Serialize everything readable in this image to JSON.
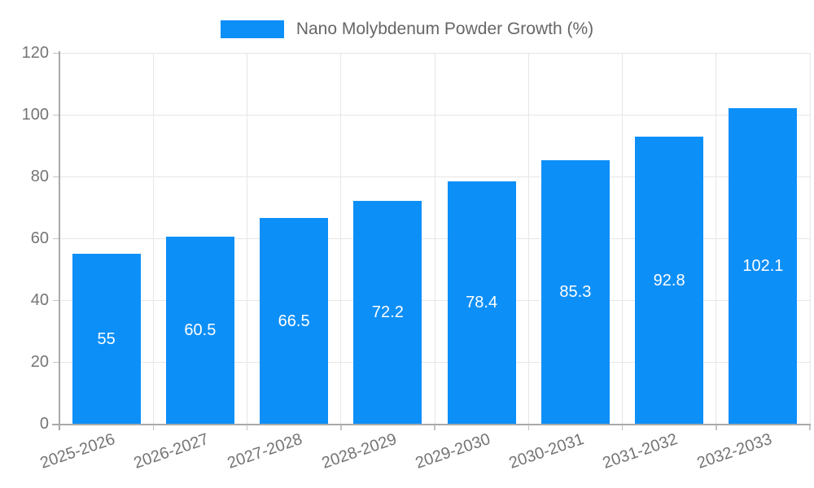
{
  "chart_data": {
    "type": "bar",
    "title": "",
    "legend": "Nano Molybdenum Powder Growth (%)",
    "categories": [
      "2025-2026",
      "2026-2027",
      "2027-2028",
      "2028-2029",
      "2029-2030",
      "2030-2031",
      "2031-2032",
      "2032-2033"
    ],
    "values": [
      55,
      60.5,
      66.5,
      72.2,
      78.4,
      85.3,
      92.8,
      102.1
    ],
    "value_labels": [
      "55",
      "60.5",
      "66.5",
      "72.2",
      "78.4",
      "85.3",
      "92.8",
      "102.1"
    ],
    "xlabel": "",
    "ylabel": "",
    "ylim": [
      0,
      120
    ],
    "yticks": [
      0,
      20,
      40,
      60,
      80,
      100,
      120
    ],
    "grid": true,
    "legend_position": "top-center",
    "colors": {
      "bar": "#0D8FF8",
      "value_label": "#ffffff",
      "axis_text": "#757575",
      "legend_text": "#666666",
      "gridline": "#e6e6e6",
      "axis_line": "#a9a9a9",
      "tick": "#c4c4c4",
      "background": "#ffffff"
    }
  }
}
